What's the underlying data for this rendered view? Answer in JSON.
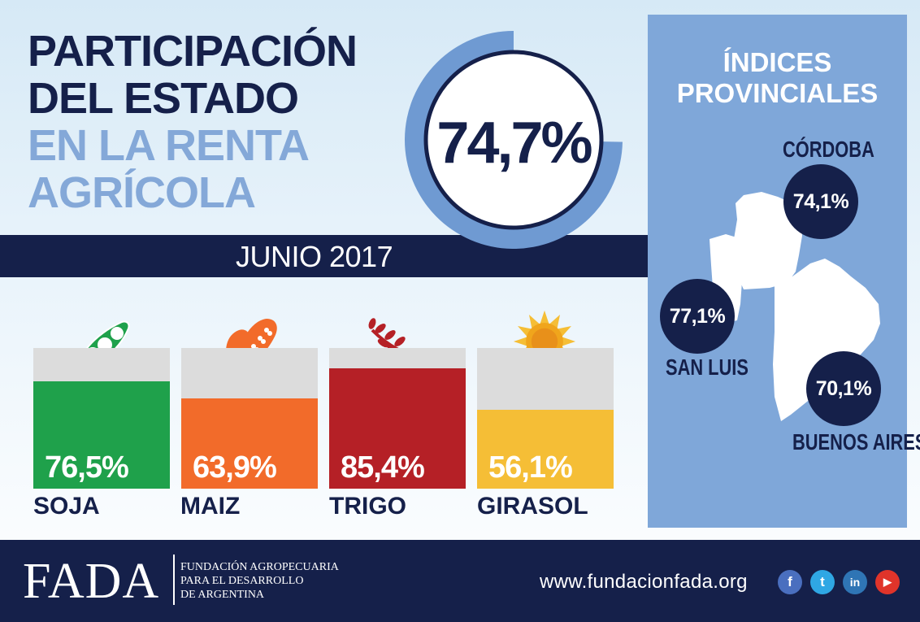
{
  "title": {
    "line1": "PARTICIPACIÓN",
    "line2": "DEL ESTADO",
    "line3": "EN LA RENTA",
    "line4": "AGRÍCOLA"
  },
  "headline_value": "74,7%",
  "headline_fraction": 0.747,
  "date_label": "JUNIO 2017",
  "crops": [
    {
      "name": "SOJA",
      "value_label": "76,5%",
      "value": 76.5,
      "color": "#1fa14b",
      "icon": "soy-pod-icon"
    },
    {
      "name": "MAIZ",
      "value_label": "63,9%",
      "value": 63.9,
      "color": "#f26b2a",
      "icon": "corn-icon"
    },
    {
      "name": "TRIGO",
      "value_label": "85,4%",
      "value": 85.4,
      "color": "#b52026",
      "icon": "wheat-icon"
    },
    {
      "name": "GIRASOL",
      "value_label": "56,1%",
      "value": 56.1,
      "color": "#f5be36",
      "icon": "sunflower-icon"
    }
  ],
  "provincial": {
    "title_line1": "ÍNDICES",
    "title_line2": "PROVINCIALES",
    "provinces": [
      {
        "name": "CÓRDOBA",
        "value": "74,1%"
      },
      {
        "name": "SAN LUIS",
        "value": "77,1%"
      },
      {
        "name": "BUENOS AIRES",
        "value": "70,1%"
      }
    ]
  },
  "footer": {
    "logo": "FADA",
    "org_line1": "FUNDACIÓN AGROPECUARIA",
    "org_line2": "PARA EL DESARROLLO",
    "org_line3": "DE ARGENTINA",
    "url": "www.fundacionfada.org",
    "social": [
      {
        "icon": "facebook-icon",
        "glyph": "f",
        "color": "#4a6fbf"
      },
      {
        "icon": "twitter-icon",
        "glyph": "t",
        "color": "#2fa7e4"
      },
      {
        "icon": "linkedin-icon",
        "glyph": "in",
        "color": "#2f75b5"
      },
      {
        "icon": "youtube-icon",
        "glyph": "▶",
        "color": "#e0342a"
      }
    ]
  },
  "colors": {
    "navy": "#15204a",
    "light_blue": "#84a8d8",
    "panel_blue": "#7fa7d9"
  }
}
